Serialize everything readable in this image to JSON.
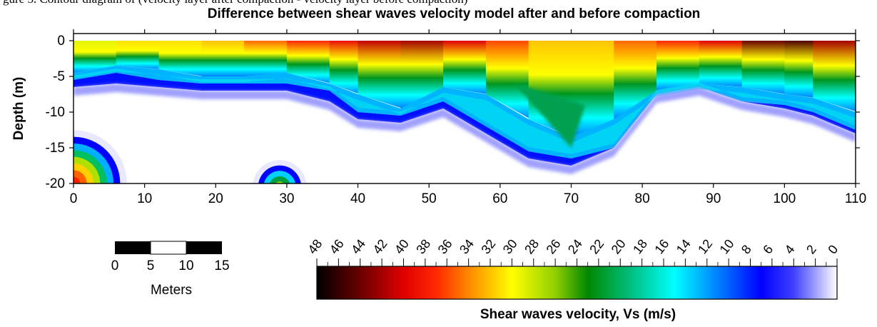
{
  "clipped_caption": "gure 5. Contour diagram of (velocity layer after compaction - velocity layer before compaction)",
  "chart_data": {
    "type": "heatmap",
    "title": "Difference between shear waves velocity model after and before compaction",
    "xlabel": "",
    "ylabel": "Depth (m)",
    "xlim": [
      0,
      110
    ],
    "ylim": [
      -20,
      0
    ],
    "xticks": [
      "0",
      "10",
      "20",
      "30",
      "40",
      "50",
      "60",
      "70",
      "80",
      "90",
      "100",
      "110"
    ],
    "yticks": [
      "0",
      "-5",
      "-10",
      "-15",
      "-20"
    ],
    "x": [
      0,
      6,
      12,
      18,
      24,
      30,
      36,
      40,
      46,
      52,
      58,
      64,
      70,
      76,
      82,
      88,
      94,
      100,
      104,
      110
    ],
    "depth_contours": [
      {
        "value": 20,
        "depth": [
          -2.5,
          -1.5,
          -2.0,
          -2.0,
          -1.5,
          -1.5,
          -1.5,
          -1.5,
          -1.5,
          -1.5,
          -2.0,
          -5.5,
          -3.5,
          -2.0,
          -1.5,
          -1.5,
          -1.5,
          -1.5,
          -1.5,
          -1.5
        ]
      },
      {
        "value": 12,
        "depth": [
          -4.5,
          -3.5,
          -4.0,
          -5.0,
          -5.0,
          -4.5,
          -6.0,
          -7.5,
          -9.5,
          -6.5,
          -7.5,
          -11.0,
          -13.5,
          -11.0,
          -7.0,
          -6.0,
          -6.5,
          -7.5,
          -8.0,
          -10.0
        ]
      },
      {
        "value": 4,
        "depth": [
          -5.5,
          -4.5,
          -5.5,
          -6.0,
          -6.0,
          -6.0,
          -7.0,
          -10.0,
          -10.5,
          -8.5,
          -12.0,
          -15.5,
          -16.5,
          -15.0,
          -7.5,
          -6.5,
          -8.5,
          -9.0,
          -10.0,
          -12.5
        ]
      },
      {
        "value": 0,
        "depth": [
          -6.5,
          -6.0,
          -6.5,
          -7.0,
          -7.0,
          -7.0,
          -8.5,
          -11.0,
          -11.5,
          -9.5,
          -13.0,
          -16.5,
          -17.5,
          -15.0,
          -7.5,
          -6.5,
          -8.5,
          -9.5,
          -10.5,
          -13.0
        ]
      }
    ],
    "secondary_zones": [
      {
        "location": "x 0-7, depth -12.5 to -20",
        "peak_value": 34
      },
      {
        "location": "x 25-32, depth -16 to -20",
        "peak_value": 26
      }
    ],
    "colorbar": {
      "label": "Shear waves velocity, Vs (m/s)",
      "ticks": [
        "48",
        "46",
        "44",
        "42",
        "40",
        "38",
        "36",
        "34",
        "32",
        "30",
        "28",
        "26",
        "24",
        "22",
        "20",
        "18",
        "16",
        "14",
        "12",
        "10",
        "8",
        "6",
        "4",
        "2",
        "0"
      ],
      "range": [
        0,
        48
      ],
      "colormap": [
        {
          "value": 48,
          "color": "#000000"
        },
        {
          "value": 44,
          "color": "#6a0000"
        },
        {
          "value": 40,
          "color": "#e00000"
        },
        {
          "value": 37,
          "color": "#ff2800"
        },
        {
          "value": 34,
          "color": "#ff8800"
        },
        {
          "value": 30,
          "color": "#ffff00"
        },
        {
          "value": 26,
          "color": "#90d000"
        },
        {
          "value": 23,
          "color": "#008800"
        },
        {
          "value": 19,
          "color": "#00c080"
        },
        {
          "value": 15,
          "color": "#00ffff"
        },
        {
          "value": 11,
          "color": "#0080ff"
        },
        {
          "value": 7,
          "color": "#0000ff"
        },
        {
          "value": 4,
          "color": "#4040ff"
        },
        {
          "value": 0,
          "color": "#ffffff"
        }
      ]
    },
    "scale_bar": {
      "ticks": [
        "0",
        "5",
        "10",
        "15"
      ],
      "unit": "Meters"
    }
  }
}
